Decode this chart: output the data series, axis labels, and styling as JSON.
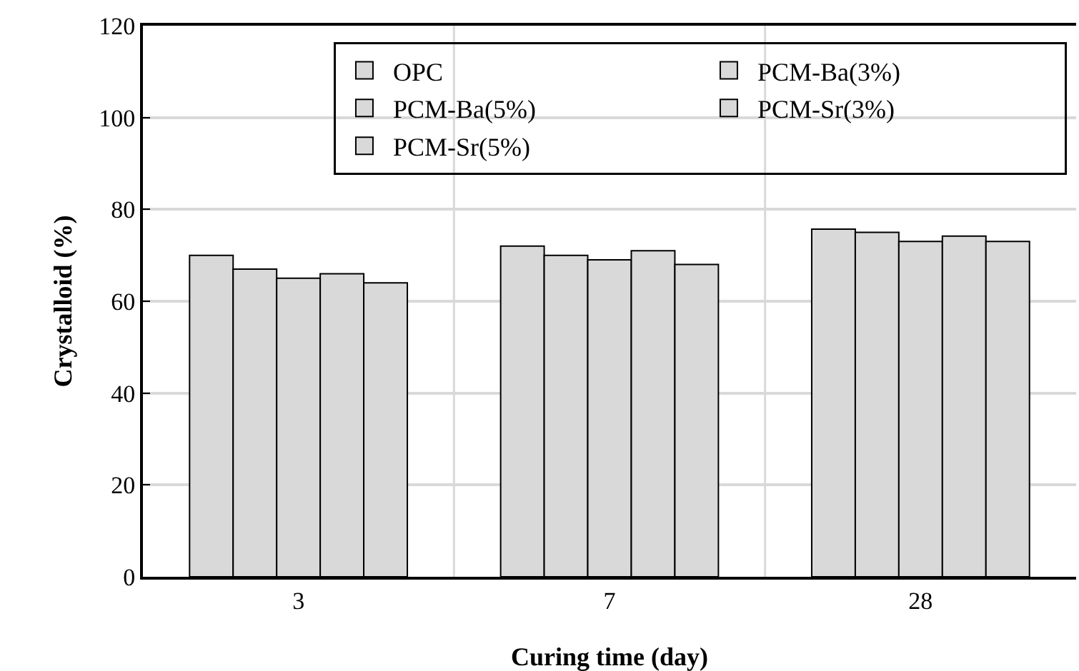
{
  "chart_data": {
    "type": "bar",
    "xlabel": "Curing time (day)",
    "ylabel": "Crystalloid (%)",
    "categories": [
      "3",
      "7",
      "28"
    ],
    "series": [
      {
        "name": "OPC",
        "color": "#d9d9d9",
        "values": [
          70,
          72,
          75.7
        ]
      },
      {
        "name": "PCM-Ba(3%)",
        "color": "#d9d9d9",
        "values": [
          67,
          70,
          75
        ]
      },
      {
        "name": "PCM-Ba(5%)",
        "color": "#d9d9d9",
        "values": [
          65,
          69,
          73
        ]
      },
      {
        "name": "PCM-Sr(3%)",
        "color": "#d9d9d9",
        "values": [
          66,
          71,
          74.2
        ]
      },
      {
        "name": "PCM-Sr(5%)",
        "color": "#d9d9d9",
        "values": [
          64,
          68,
          73
        ]
      }
    ],
    "ylim": [
      0,
      120
    ],
    "yticks": [
      0,
      20,
      40,
      60,
      80,
      100,
      120
    ],
    "grid": true,
    "legend": "top right"
  }
}
